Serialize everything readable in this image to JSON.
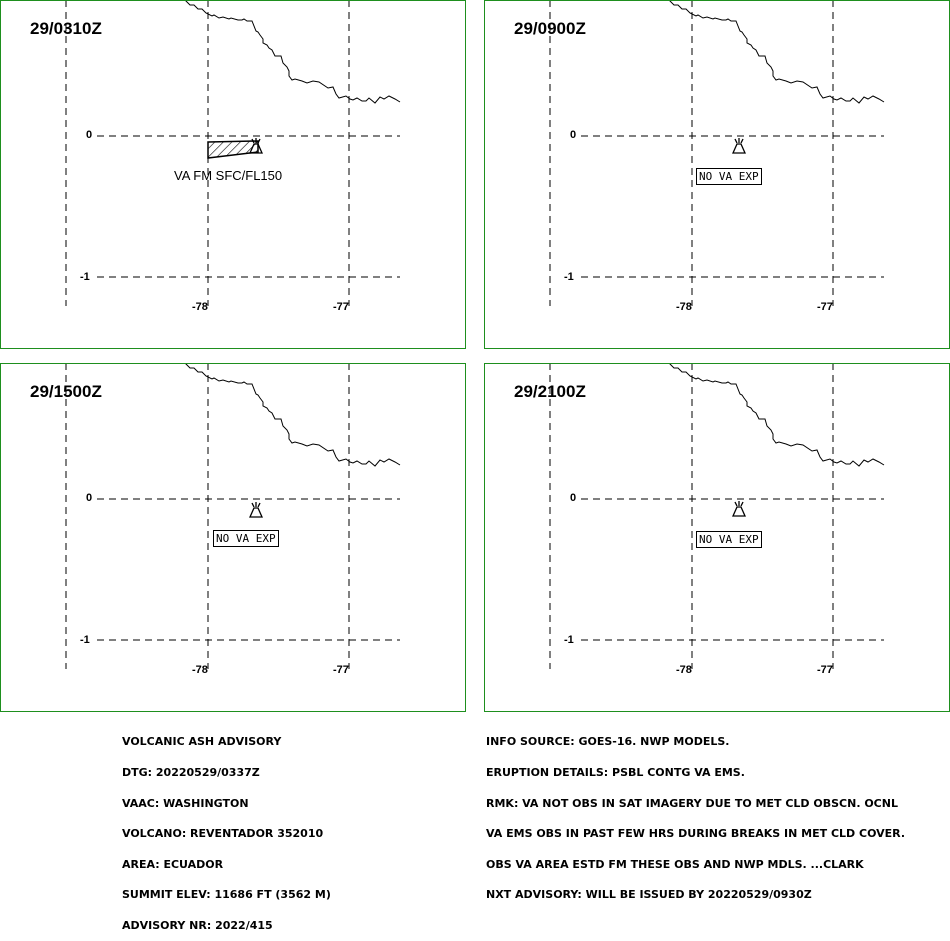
{
  "panels": [
    {
      "time": "29/0310Z",
      "va_label": "VA FM SFC/FL150",
      "no_va_label": ""
    },
    {
      "time": "29/0900Z",
      "va_label": "",
      "no_va_label": "NO VA EXP"
    },
    {
      "time": "29/1500Z",
      "va_label": "",
      "no_va_label": "NO VA EXP"
    },
    {
      "time": "29/2100Z",
      "va_label": "",
      "no_va_label": "NO VA EXP"
    }
  ],
  "grid": {
    "lat_labels": [
      "0",
      "-1"
    ],
    "lon_labels": [
      "-78",
      "-77"
    ]
  },
  "colors": {
    "panel_border": "#1e8f1e",
    "text": "#000000"
  },
  "advisory_left": {
    "lines": [
      "VOLCANIC ASH ADVISORY",
      "DTG: 20220529/0337Z",
      "VAAC: WASHINGTON",
      "VOLCANO: REVENTADOR 352010",
      "AREA: ECUADOR",
      "SUMMIT ELEV: 11686 FT (3562 M)",
      "ADVISORY NR: 2022/415"
    ]
  },
  "advisory_right": {
    "lines": [
      "INFO SOURCE: GOES-16. NWP MODELS.",
      "ERUPTION DETAILS: PSBL CONTG VA EMS.",
      "RMK: VA NOT OBS IN SAT IMAGERY DUE TO MET CLD OBSCN. OCNL",
      "VA EMS OBS IN PAST FEW HRS DURING BREAKS IN MET CLD COVER.",
      "OBS VA AREA ESTD FM THESE OBS AND NWP MDLS. ...CLARK",
      "NXT ADVISORY: WILL BE ISSUED BY 20220529/0930Z"
    ]
  }
}
